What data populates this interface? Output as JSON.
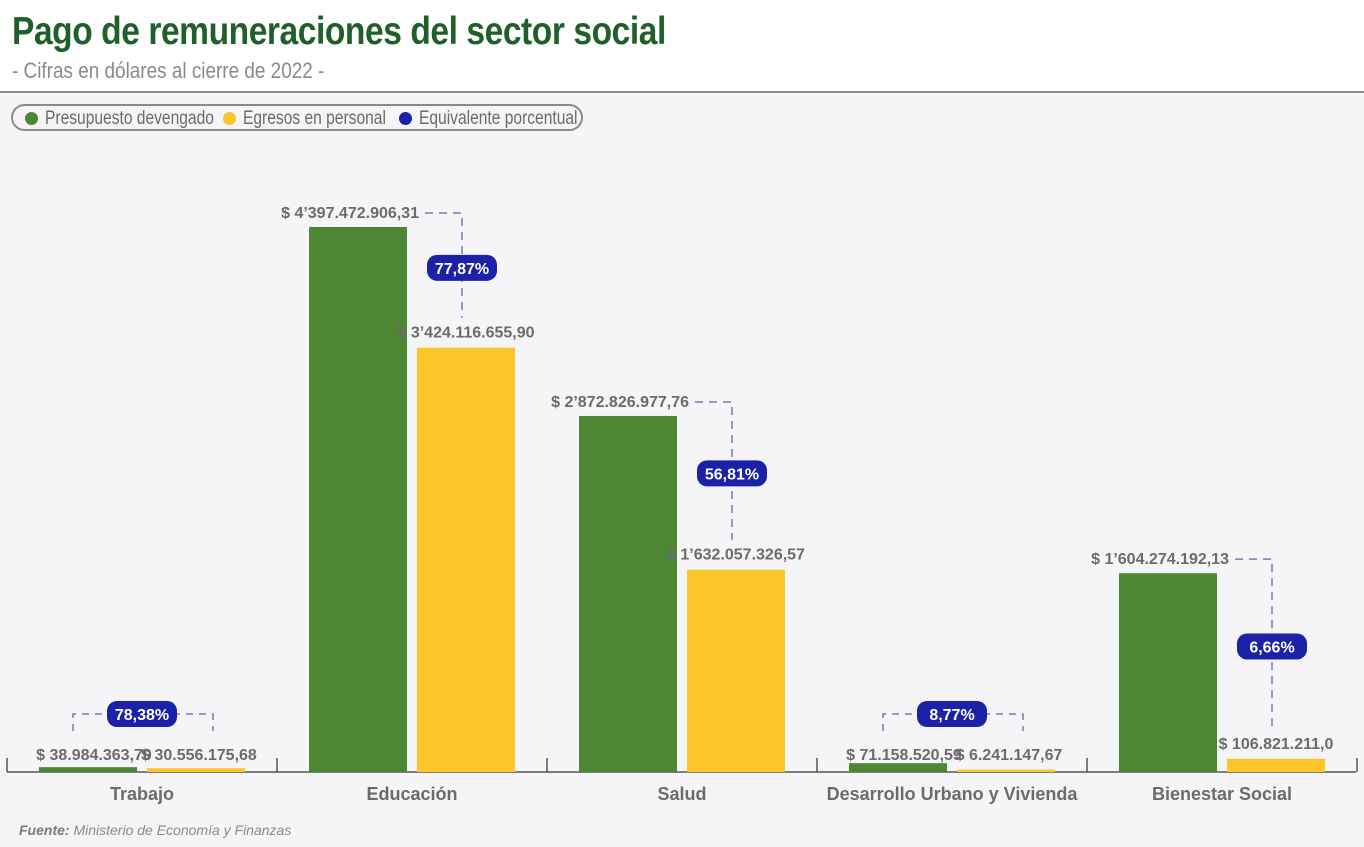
{
  "header": {
    "title": "Pago de remuneraciones del sector social",
    "subtitle": "- Cifras en dólares al cierre de 2022 -"
  },
  "legend": [
    {
      "label": "Presupuesto devengado",
      "color": "#4e8733",
      "icon": "green-dot-icon"
    },
    {
      "label": "Egresos en personal",
      "color": "#fcc62b",
      "icon": "yellow-dot-icon"
    },
    {
      "label": "Equivalente porcentual",
      "color": "#1c22a8",
      "icon": "blue-dot-icon"
    }
  ],
  "chart_data": {
    "type": "bar",
    "title": "Pago de remuneraciones del sector social",
    "subtitle": "- Cifras en dólares al cierre de 2022 -",
    "categories": [
      "Trabajo",
      "Educación",
      "Salud",
      "Desarrollo Urbano y Vivienda",
      "Bienestar Social"
    ],
    "series": [
      {
        "name": "Presupuesto devengado",
        "color": "#4e8733",
        "values": [
          38984363.7,
          4397472906.31,
          2872826977.76,
          71158520.59,
          1604274192.13
        ],
        "labels": [
          "$ 38.984.363,70",
          "$ 4’397.472.906,31",
          "$ 2’872.826.977,76",
          "$ 71.158.520,59",
          "$ 1’604.274.192,13"
        ]
      },
      {
        "name": "Egresos en personal",
        "color": "#fcc62b",
        "values": [
          30556175.68,
          3424116655.9,
          1632057326.57,
          6241147.67,
          106821211.0
        ],
        "labels": [
          "$ 30.556.175,68",
          "$ 3’424.116.655,90",
          "$ 1’632.057.326,57",
          "$ 6.241.147,67",
          "$ 106.821.211,0"
        ]
      }
    ],
    "percentages": {
      "name": "Equivalente porcentual",
      "color": "#1c22a8",
      "labels": [
        "78,38%",
        "77,87%",
        "56,81%",
        "8,77%",
        "6,66%"
      ]
    },
    "ylim": [
      0,
      4397472906.31
    ],
    "xlabel": "",
    "ylabel": "",
    "grid": false,
    "legend_position": "top-left"
  },
  "source": {
    "label": "Fuente:",
    "text": "Ministerio de Economía y Finanzas"
  }
}
